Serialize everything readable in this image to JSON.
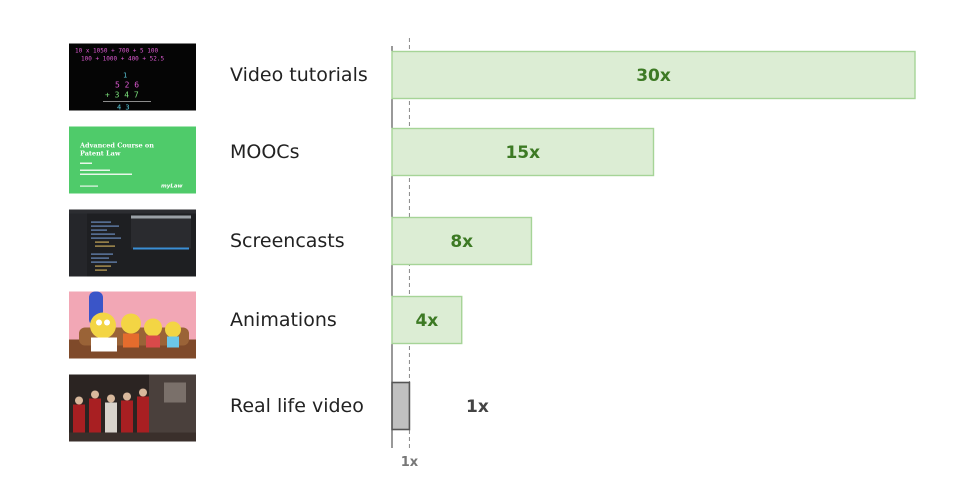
{
  "colors": {
    "bar_fill": "#dcedd4",
    "bar_stroke": "#a6d497",
    "bar_label": "#3d7a24",
    "baseline_fill": "#c0c0c0",
    "baseline_stroke": "#555555",
    "baseline_label": "#444444",
    "reference_line": "#888888"
  },
  "chart_data": {
    "type": "bar",
    "orientation": "horizontal",
    "categories": [
      "Video tutorials",
      "MOOCs",
      "Screencasts",
      "Animations",
      "Real life video"
    ],
    "values": [
      30,
      15,
      8,
      4,
      1
    ],
    "value_labels": [
      "30x",
      "15x",
      "8x",
      "4x",
      "1x"
    ],
    "reference_line": {
      "value": 1,
      "label": "1x",
      "style": "dashed"
    },
    "xlim": [
      0,
      30
    ],
    "grid": false,
    "legend": "none",
    "thumbnails": [
      {
        "category": "Video tutorials",
        "icon": "handwritten-math-blackboard-thumbnail"
      },
      {
        "category": "MOOCs",
        "icon": "course-slide-thumbnail"
      },
      {
        "category": "Screencasts",
        "icon": "code-editor-screen-thumbnail"
      },
      {
        "category": "Animations",
        "icon": "cartoon-family-thumbnail"
      },
      {
        "category": "Real life video",
        "icon": "live-action-film-still-thumbnail"
      }
    ],
    "mooc_slide_text": {
      "title_line1": "Advanced Course on",
      "title_line2": "Patent Law",
      "brand": "myLaw"
    }
  }
}
